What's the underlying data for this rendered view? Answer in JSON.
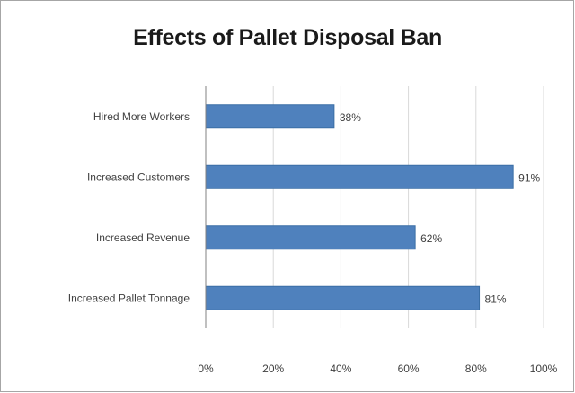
{
  "chart_data": {
    "type": "bar",
    "orientation": "horizontal",
    "title": "Effects of Pallet Disposal Ban",
    "xlabel": "",
    "ylabel": "",
    "categories": [
      "Hired More Workers",
      "Increased Customers",
      "Increased Revenue",
      "Increased Pallet Tonnage"
    ],
    "values": [
      38,
      91,
      62,
      81
    ],
    "data_labels": [
      "38%",
      "91%",
      "62%",
      "81%"
    ],
    "xlim": [
      0,
      100
    ],
    "ticks": [
      0,
      20,
      40,
      60,
      80,
      100
    ],
    "tick_labels": [
      "0%",
      "20%",
      "40%",
      "60%",
      "80%",
      "100%"
    ],
    "grid": "vertical",
    "legend": "none",
    "bar_color": "#4f81bd",
    "bar_edge_color": "#3a6ea5",
    "grid_color": "#d9d9d9"
  }
}
